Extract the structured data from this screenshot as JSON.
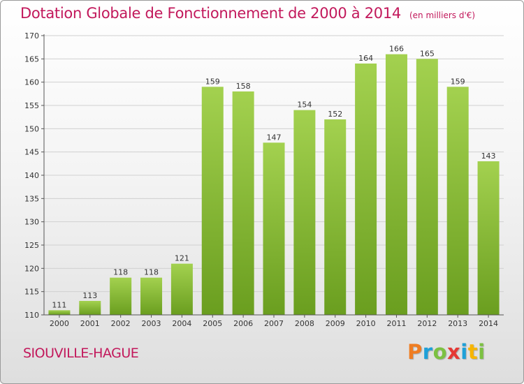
{
  "header": {
    "title": "Dotation Globale de Fonctionnement de 2000 à 2014",
    "subtitle": "(en milliers d'€)"
  },
  "footer": {
    "commune": "SIOUVILLE-HAGUE",
    "logo_text": "Proxiti"
  },
  "colors": {
    "title": "#c2185b",
    "bar_top": "#a3d14f",
    "bar_bottom": "#6a9e1f",
    "grid": "#d0d0d0"
  },
  "chart_data": {
    "type": "bar",
    "title": "Dotation Globale de Fonctionnement de 2000 à 2014",
    "subtitle": "(en milliers d'€)",
    "categories": [
      "2000",
      "2001",
      "2002",
      "2003",
      "2004",
      "2005",
      "2006",
      "2007",
      "2008",
      "2009",
      "2010",
      "2011",
      "2012",
      "2013",
      "2014"
    ],
    "values": [
      111,
      113,
      118,
      118,
      121,
      159,
      158,
      147,
      154,
      152,
      164,
      166,
      165,
      159,
      143
    ],
    "data_labels": [
      "111",
      "113",
      "118",
      "118",
      "121",
      "159",
      "158",
      "147",
      "154",
      "152",
      "164",
      "166",
      "165",
      "159",
      "143"
    ],
    "xlabel": "",
    "ylabel": "",
    "ylim": [
      110,
      170
    ],
    "yticks": [
      110,
      115,
      120,
      125,
      130,
      135,
      140,
      145,
      150,
      155,
      160,
      165,
      170
    ],
    "grid": true,
    "legend": "none"
  }
}
